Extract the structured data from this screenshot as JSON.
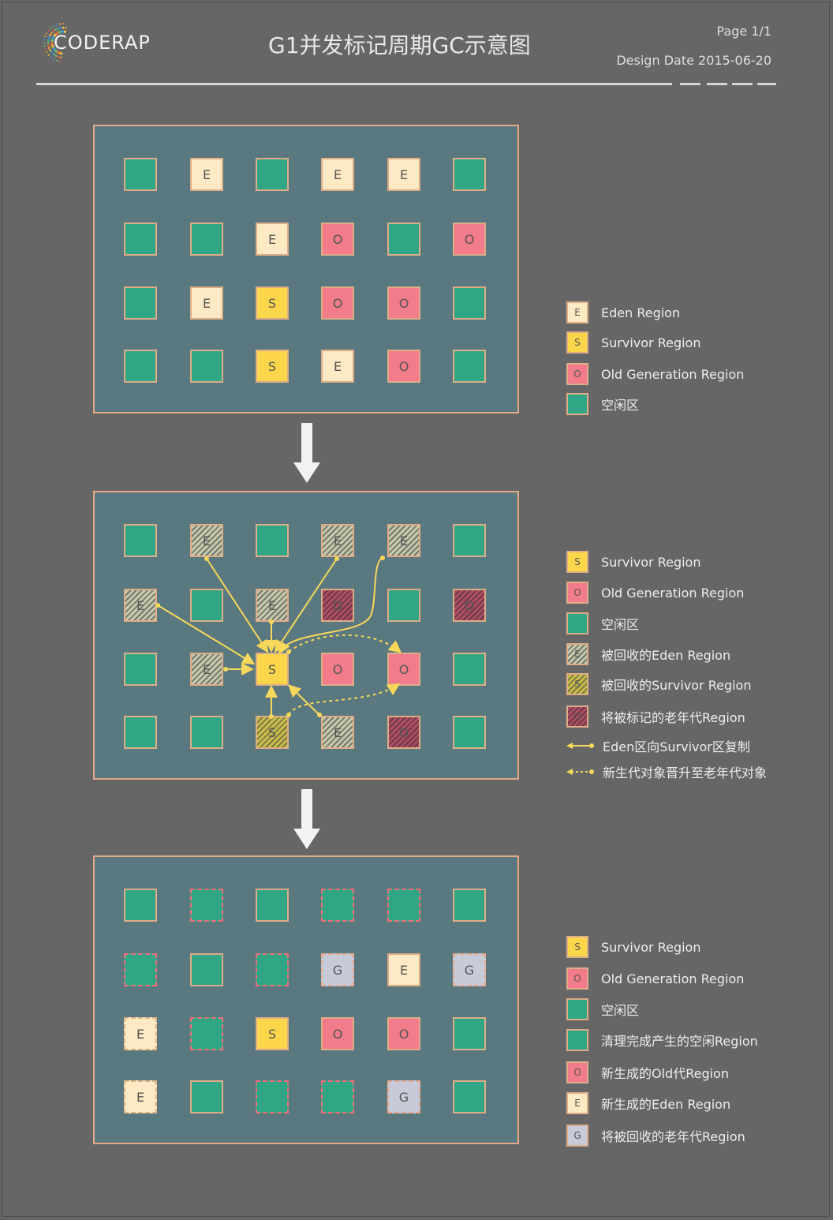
{
  "header": {
    "logo_text": "CODERAP",
    "title": "G1并发标记周期GC示意图",
    "page": "Page 1/1",
    "date": "Design Date 2015-06-20"
  },
  "colors": {
    "free": "#31a685",
    "eden": "#fde9c3",
    "survivor": "#fbd54a",
    "old": "#f27c8a",
    "garbage": "#c7cad9",
    "panel": "#5a7880",
    "arrow": "#f7d85a"
  },
  "panel1": {
    "rows": [
      [
        "",
        "E",
        "",
        "E",
        "E",
        ""
      ],
      [
        "",
        "",
        "E",
        "O",
        "",
        "O"
      ],
      [
        "",
        "E",
        "S",
        "O",
        "O",
        ""
      ],
      [
        "",
        "",
        "S",
        "E",
        "O",
        ""
      ]
    ]
  },
  "panel2": {
    "rows": [
      [
        "",
        "E",
        "",
        "E",
        "E",
        ""
      ],
      [
        "E",
        "",
        "E",
        "O",
        "",
        "O"
      ],
      [
        "",
        "E",
        "S",
        "O",
        "O",
        ""
      ],
      [
        "",
        "",
        "S",
        "E",
        "O",
        ""
      ]
    ]
  },
  "panel3": {
    "rows": [
      [
        "",
        "",
        "",
        "",
        "",
        ""
      ],
      [
        "",
        "",
        "",
        "G",
        "E",
        "G"
      ],
      [
        "E",
        "",
        "S",
        "O",
        "O",
        ""
      ],
      [
        "E",
        "",
        "",
        "",
        "G",
        ""
      ]
    ]
  },
  "legend1": [
    {
      "letter": "E",
      "label": "Eden Region"
    },
    {
      "letter": "S",
      "label": "Survivor Region"
    },
    {
      "letter": "O",
      "label": "Old Generation Region"
    },
    {
      "letter": "",
      "label": "空闲区"
    }
  ],
  "legend2": [
    {
      "letter": "S",
      "label": "Survivor Region"
    },
    {
      "letter": "O",
      "label": "Old Generation Region"
    },
    {
      "letter": "",
      "label": "空闲区"
    },
    {
      "letter": "E",
      "label": "被回收的Eden Region"
    },
    {
      "letter": "S",
      "label": "被回收的Survivor Region"
    },
    {
      "letter": "O",
      "label": "将被标记的老年代Region"
    },
    {
      "letter": "",
      "label": "Eden区向Survivor区复制"
    },
    {
      "letter": "",
      "label": "新生代对象晋升至老年代对象"
    }
  ],
  "legend3": [
    {
      "letter": "S",
      "label": "Survivor Region"
    },
    {
      "letter": "O",
      "label": "Old Generation Region"
    },
    {
      "letter": "",
      "label": "空闲区"
    },
    {
      "letter": "",
      "label": "清理完成产生的空闲Region"
    },
    {
      "letter": "O",
      "label": "新生成的Old代Region"
    },
    {
      "letter": "E",
      "label": "新生成的Eden Region"
    },
    {
      "letter": "G",
      "label": "将被回收的老年代Region"
    }
  ]
}
